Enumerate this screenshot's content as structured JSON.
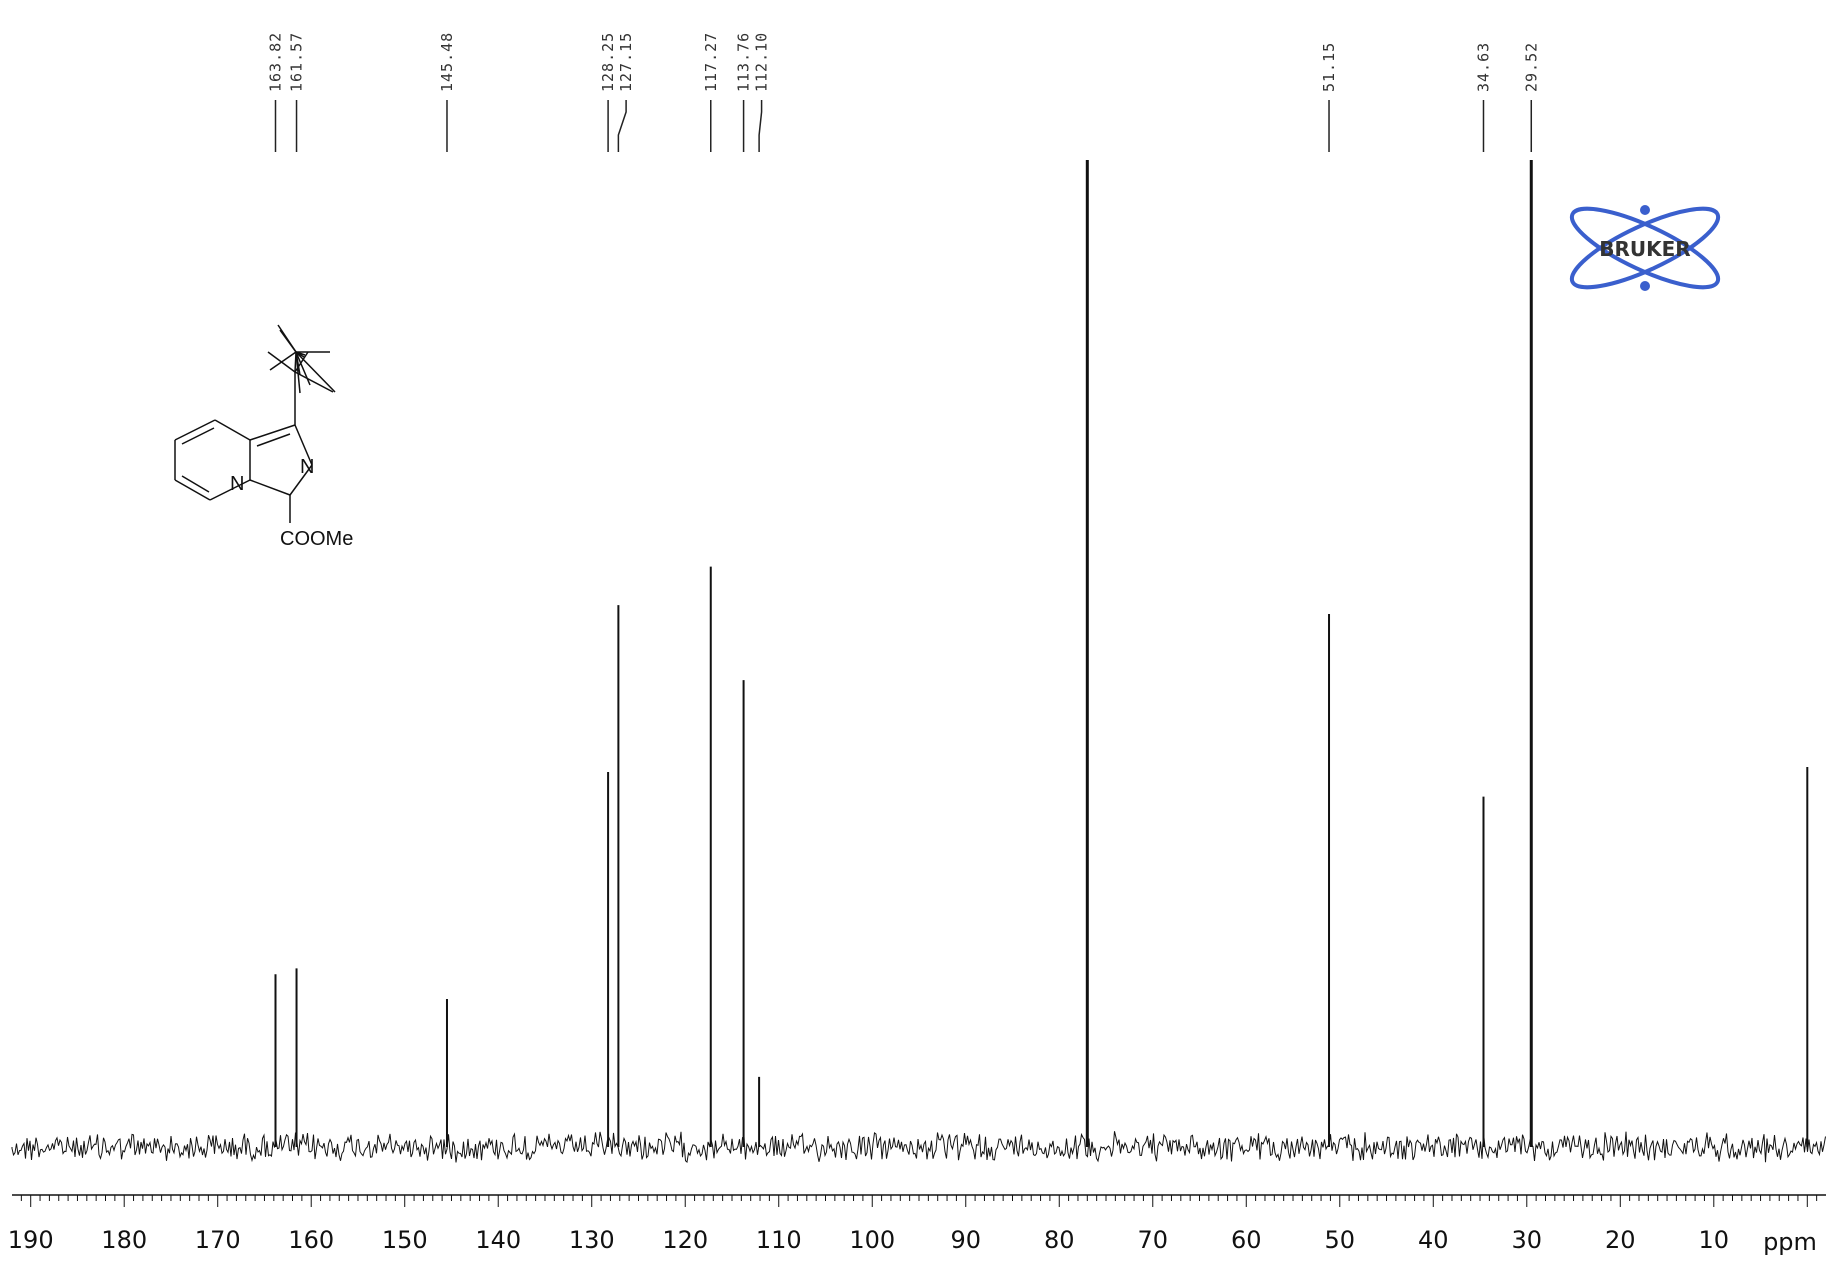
{
  "chart_data": {
    "type": "line",
    "title": "",
    "xlabel": "ppm",
    "ylabel": "",
    "xlim": [
      192,
      -2
    ],
    "x_ticks": [
      190,
      180,
      170,
      160,
      150,
      140,
      130,
      120,
      110,
      100,
      90,
      80,
      70,
      60,
      50,
      40,
      30,
      20,
      10
    ],
    "x_tick_labels": [
      "190",
      "180",
      "170",
      "160",
      "150",
      "140",
      "130",
      "120",
      "110",
      "100",
      "90",
      "80",
      "70",
      "60",
      "50",
      "40",
      "30",
      "20",
      "10"
    ],
    "unit_label": "ppm",
    "peak_labels": [
      "163.82",
      "161.57",
      "145.48",
      "128.25",
      "127.15",
      "117.27",
      "113.76",
      "112.10",
      "51.15",
      "34.63",
      "29.52"
    ],
    "peaks": [
      {
        "ppm": 163.82,
        "intensity": 0.175
      },
      {
        "ppm": 161.57,
        "intensity": 0.181
      },
      {
        "ppm": 145.48,
        "intensity": 0.15
      },
      {
        "ppm": 128.25,
        "intensity": 0.38
      },
      {
        "ppm": 127.15,
        "intensity": 0.549
      },
      {
        "ppm": 117.27,
        "intensity": 0.588
      },
      {
        "ppm": 113.76,
        "intensity": 0.473
      },
      {
        "ppm": 112.1,
        "intensity": 0.071
      },
      {
        "ppm": 77.0,
        "intensity": 1.0
      },
      {
        "ppm": 51.15,
        "intensity": 0.54
      },
      {
        "ppm": 34.63,
        "intensity": 0.355
      },
      {
        "ppm": 29.52,
        "intensity": 1.0
      },
      {
        "ppm": 0.0,
        "intensity": 0.385
      }
    ],
    "grid": false,
    "legend": "none"
  },
  "structure": {
    "substituent_label": "COOMe",
    "ring_n_label": "N",
    "bridge_n_label": "N"
  },
  "logo": {
    "text": "BRUKER",
    "color": "#3a5fcd"
  },
  "colors": {
    "spectrum": "#111111",
    "peak_line": "#222222",
    "label": "#333333"
  }
}
